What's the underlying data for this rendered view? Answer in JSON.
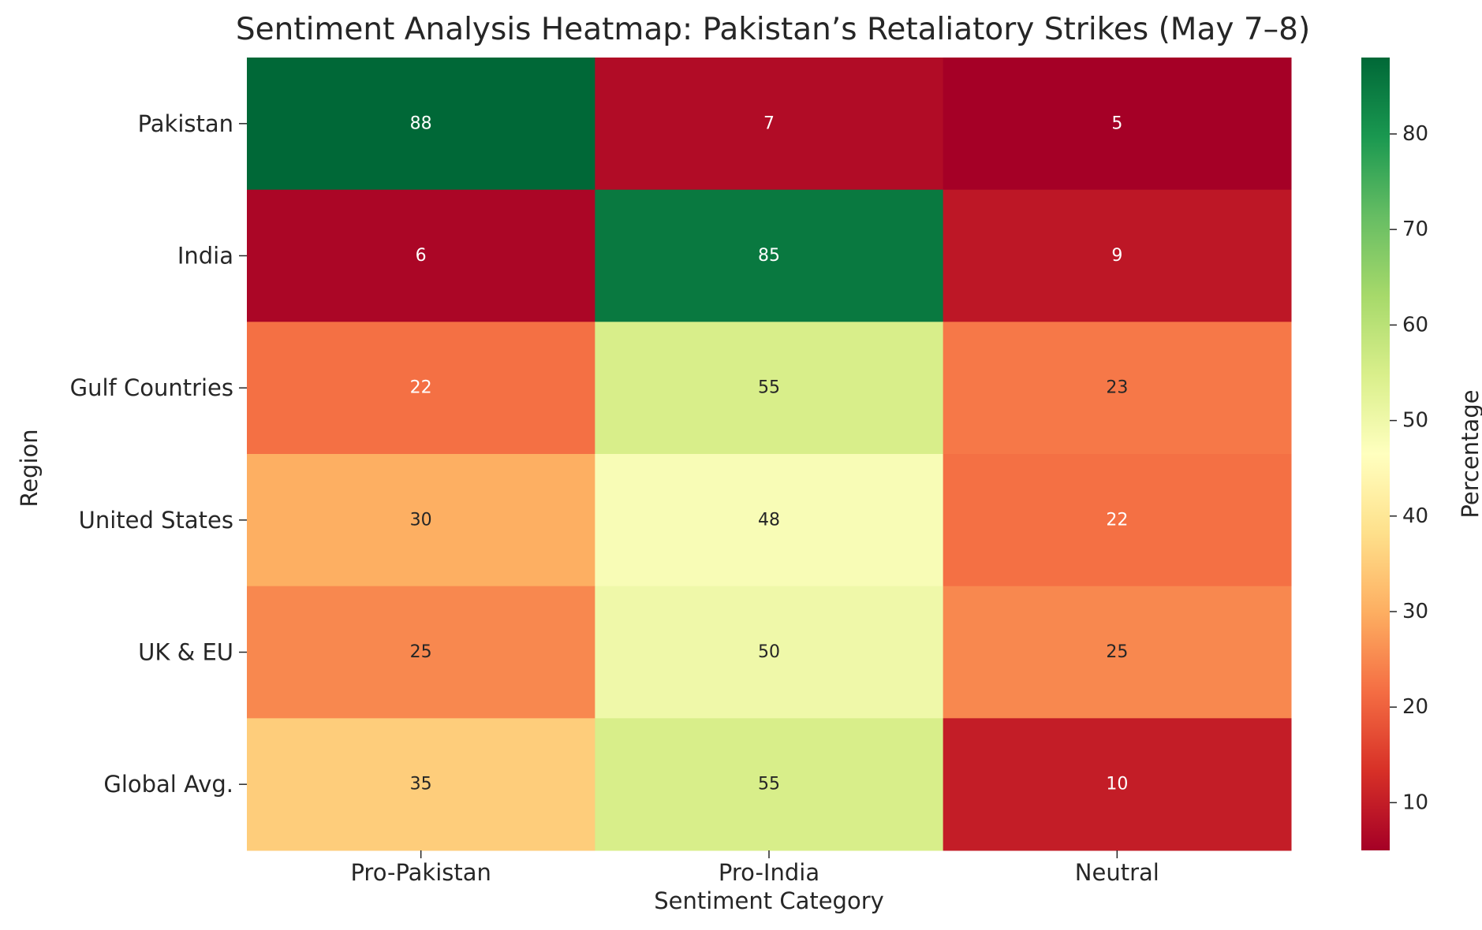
{
  "chart_data": {
    "type": "heatmap",
    "title": "Sentiment Analysis Heatmap: Pakistan’s Retaliatory Strikes (May 7–8)",
    "xlabel": "Sentiment Category",
    "ylabel": "Region",
    "x_categories": [
      "Pro-Pakistan",
      "Pro-India",
      "Neutral"
    ],
    "y_categories": [
      "Pakistan",
      "India",
      "Gulf Countries",
      "United States",
      "UK & EU",
      "Global Avg."
    ],
    "values": [
      [
        88,
        7,
        5
      ],
      [
        6,
        85,
        9
      ],
      [
        22,
        55,
        23
      ],
      [
        30,
        48,
        22
      ],
      [
        25,
        50,
        25
      ],
      [
        35,
        55,
        10
      ]
    ],
    "annotated": true,
    "colormap": "RdYlGn",
    "colorbar": {
      "label": "Percentage",
      "range": [
        5,
        88
      ],
      "ticks": [
        10,
        20,
        30,
        40,
        50,
        60,
        70,
        80
      ]
    }
  }
}
